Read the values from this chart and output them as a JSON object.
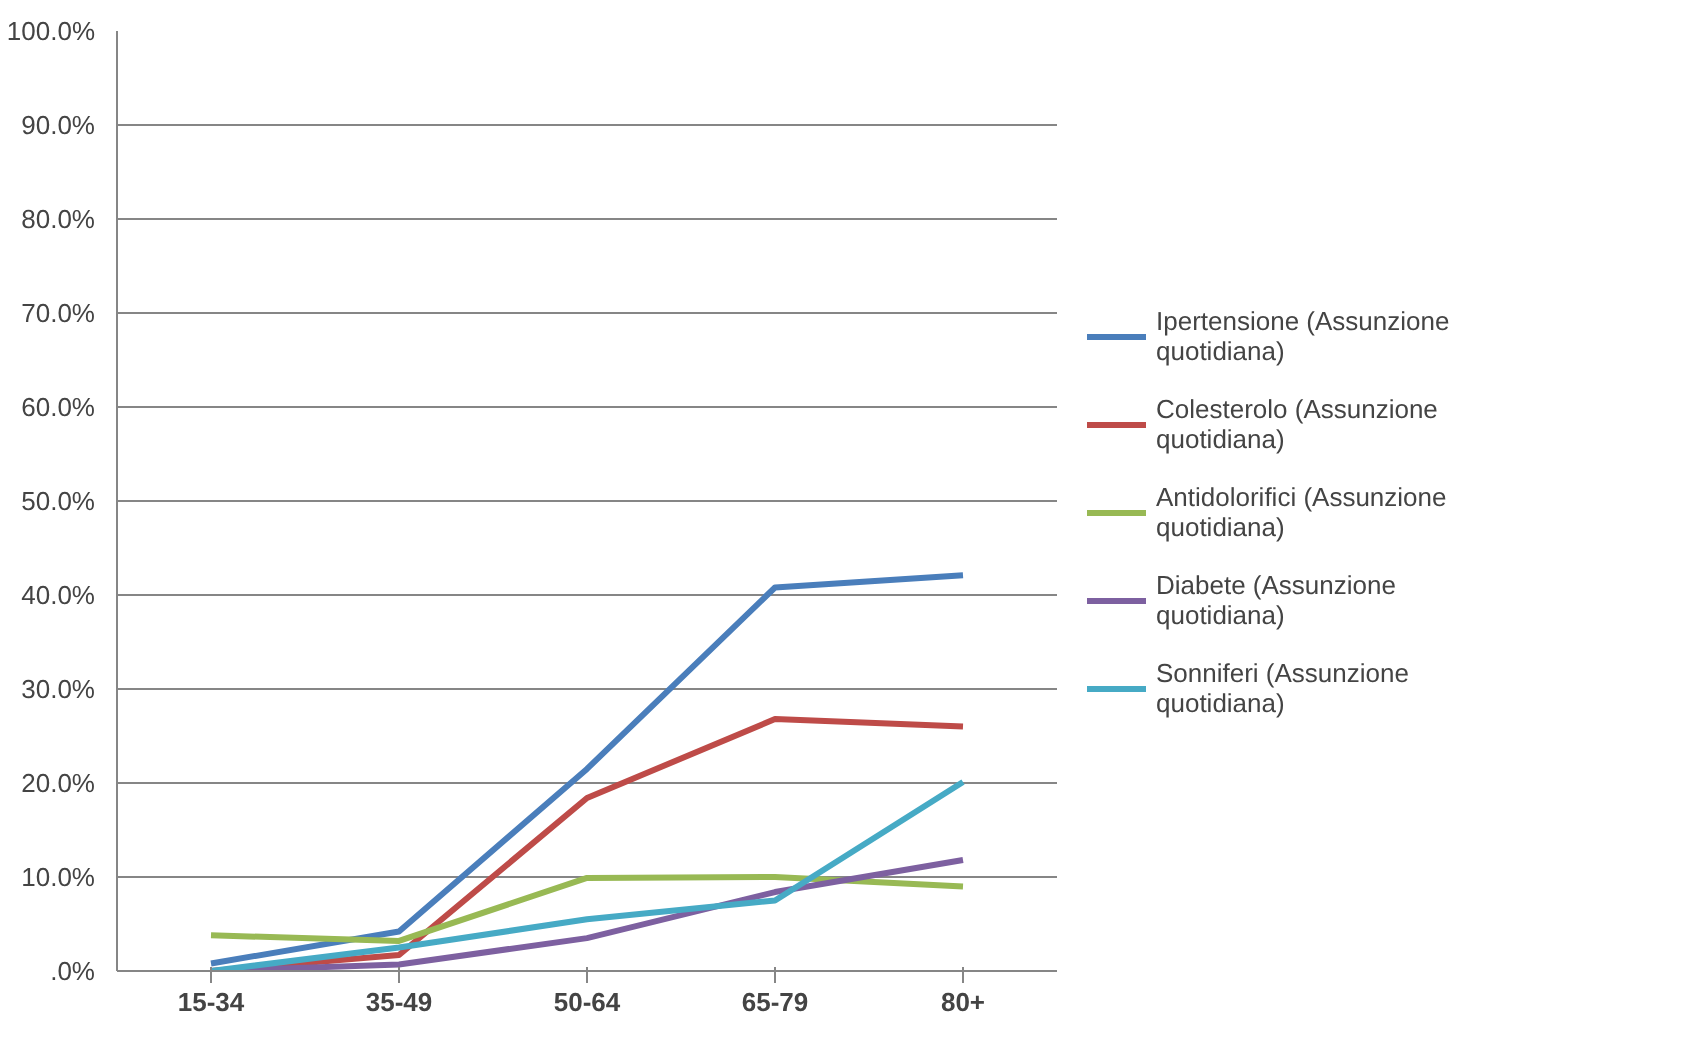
{
  "chart_data": {
    "type": "line",
    "categories": [
      "15-34",
      "35-49",
      "50-64",
      "65-79",
      "80+"
    ],
    "series": [
      {
        "name": "Ipertensione (Assunzione quotidiana)",
        "color": "#4a7ebb",
        "values": [
          0.8,
          4.2,
          21.5,
          40.8,
          42.1
        ]
      },
      {
        "name": "Colesterolo (Assunzione quotidiana)",
        "color": "#be4b48",
        "values": [
          0.0,
          1.7,
          18.4,
          26.8,
          26.0
        ]
      },
      {
        "name": "Antidolorifici (Assunzione quotidiana)",
        "color": "#98b954",
        "values": [
          3.8,
          3.2,
          9.9,
          10.0,
          9.0
        ]
      },
      {
        "name": "Diabete (Assunzione quotidiana)",
        "color": "#7d60a0",
        "values": [
          0.0,
          0.7,
          3.5,
          8.4,
          11.8
        ]
      },
      {
        "name": "Sonniferi (Assunzione quotidiana)",
        "color": "#46aac5",
        "values": [
          0.0,
          2.5,
          5.5,
          7.5,
          20.1
        ]
      }
    ],
    "ylim": [
      0,
      100
    ],
    "yticks": [
      {
        "value": 0,
        "label": ".0%"
      },
      {
        "value": 10,
        "label": "10.0%"
      },
      {
        "value": 20,
        "label": "20.0%"
      },
      {
        "value": 30,
        "label": "30.0%"
      },
      {
        "value": 40,
        "label": "40.0%"
      },
      {
        "value": 50,
        "label": "50.0%"
      },
      {
        "value": 60,
        "label": "60.0%"
      },
      {
        "value": 70,
        "label": "70.0%"
      },
      {
        "value": 80,
        "label": "80.0%"
      },
      {
        "value": 90,
        "label": "90.0%"
      },
      {
        "value": 100,
        "label": "100.0%"
      }
    ],
    "grid": "y",
    "legend": "right",
    "marker": "none",
    "line_style": "solid"
  }
}
